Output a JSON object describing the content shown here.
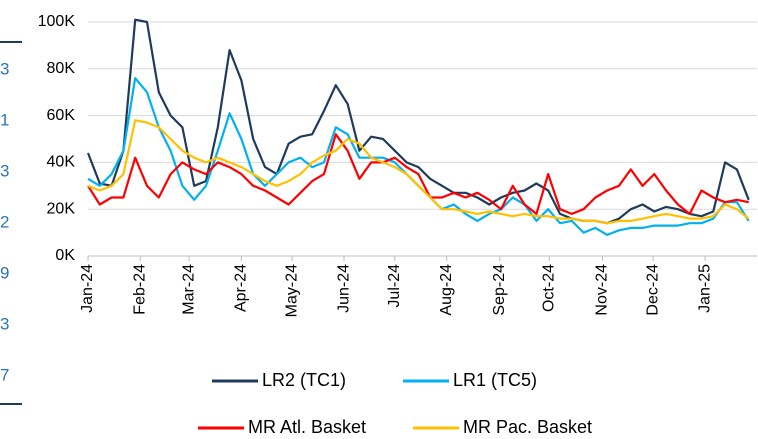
{
  "chart_data": {
    "type": "line",
    "x": [
      0,
      1,
      2,
      3,
      4,
      5,
      6,
      7,
      8,
      9,
      10,
      11,
      12,
      13,
      14,
      15,
      16,
      17,
      18,
      19,
      20,
      21,
      22,
      23,
      24,
      25,
      26,
      27,
      28,
      29,
      30,
      31,
      32,
      33,
      34,
      35,
      36,
      37,
      38,
      39,
      40,
      41,
      42,
      43,
      44,
      45,
      46,
      47,
      48,
      49,
      50,
      51,
      52,
      53,
      54,
      55,
      56
    ],
    "xlim": [
      0,
      56.7
    ],
    "xticks": [
      {
        "value": 0,
        "label": "Jan-24"
      },
      {
        "value": 4.43,
        "label": "Feb-24"
      },
      {
        "value": 8.57,
        "label": "Mar-24"
      },
      {
        "value": 13,
        "label": "Apr-24"
      },
      {
        "value": 17.3,
        "label": "May-24"
      },
      {
        "value": 21.7,
        "label": "Jun-24"
      },
      {
        "value": 26,
        "label": "Jul-24"
      },
      {
        "value": 30.4,
        "label": "Aug-24"
      },
      {
        "value": 34.9,
        "label": "Sep-24"
      },
      {
        "value": 39.1,
        "label": "Oct-24"
      },
      {
        "value": 43.6,
        "label": "Nov-24"
      },
      {
        "value": 47.9,
        "label": "Dec-24"
      },
      {
        "value": 52.3,
        "label": "Jan-25"
      }
    ],
    "ylim": [
      0,
      100000
    ],
    "yticks": [
      {
        "value": 0,
        "label": "0K"
      },
      {
        "value": 20000,
        "label": "20K"
      },
      {
        "value": 40000,
        "label": "40K"
      },
      {
        "value": 60000,
        "label": "60K"
      },
      {
        "value": 80000,
        "label": "80K"
      },
      {
        "value": 100000,
        "label": "100K"
      }
    ],
    "grid": true,
    "series": [
      {
        "name": "LR2 (TC1)",
        "color": "#1f3b5c",
        "values": [
          44000,
          31000,
          30000,
          45000,
          101000,
          100000,
          70000,
          60000,
          55000,
          30000,
          32000,
          55000,
          88000,
          75000,
          50000,
          38000,
          35000,
          48000,
          51000,
          52000,
          62000,
          73000,
          65000,
          45000,
          51000,
          50000,
          45000,
          40000,
          38000,
          33000,
          30000,
          27000,
          27000,
          25000,
          22000,
          25000,
          27000,
          28000,
          31000,
          28000,
          18000,
          16000,
          15000,
          15000,
          14000,
          16000,
          20000,
          22000,
          19000,
          21000,
          20000,
          18000,
          17000,
          19000,
          40000,
          37000,
          24000
        ]
      },
      {
        "name": "LR1 (TC5)",
        "color": "#00b0f0",
        "values": [
          33000,
          30000,
          35000,
          45000,
          76000,
          70000,
          55000,
          45000,
          30000,
          24000,
          30000,
          45000,
          61000,
          50000,
          35000,
          30000,
          35000,
          40000,
          42000,
          38000,
          40000,
          55000,
          52000,
          42000,
          42000,
          42000,
          40000,
          35000,
          30000,
          25000,
          20000,
          22000,
          18000,
          15000,
          18000,
          20000,
          25000,
          22000,
          15000,
          20000,
          14000,
          15000,
          10000,
          12000,
          9000,
          11000,
          12000,
          12000,
          13000,
          13000,
          13000,
          14000,
          14000,
          16000,
          23000,
          23000,
          15000
        ]
      },
      {
        "name": "MR Atl. Basket",
        "color": "#ff0000",
        "values": [
          30000,
          22000,
          25000,
          25000,
          42000,
          30000,
          25000,
          35000,
          40000,
          37000,
          35000,
          40000,
          38000,
          35000,
          30000,
          28000,
          25000,
          22000,
          27000,
          32000,
          35000,
          52000,
          45000,
          33000,
          40000,
          40000,
          42000,
          38000,
          35000,
          25000,
          25000,
          27000,
          25000,
          27000,
          24000,
          20000,
          30000,
          22000,
          18000,
          35000,
          20000,
          18000,
          20000,
          25000,
          28000,
          30000,
          37000,
          30000,
          35000,
          28000,
          22000,
          18000,
          28000,
          25000,
          23000,
          24000,
          23000
        ]
      },
      {
        "name": "MR Pac. Basket",
        "color": "#ffc000",
        "values": [
          30000,
          28000,
          30000,
          35000,
          58000,
          57000,
          55000,
          50000,
          45000,
          42000,
          40000,
          42000,
          40000,
          38000,
          35000,
          32000,
          30000,
          32000,
          35000,
          40000,
          43000,
          45000,
          50000,
          48000,
          42000,
          40000,
          38000,
          35000,
          30000,
          25000,
          20000,
          20000,
          19000,
          18000,
          19000,
          18000,
          17000,
          18000,
          17000,
          17000,
          16000,
          16000,
          15000,
          15000,
          14000,
          15000,
          15000,
          16000,
          17000,
          18000,
          17000,
          16000,
          16000,
          17000,
          22000,
          20000,
          16000
        ]
      }
    ]
  },
  "left_fragments": [
    "3",
    "1",
    "3",
    "2",
    "9",
    "3",
    "7"
  ]
}
